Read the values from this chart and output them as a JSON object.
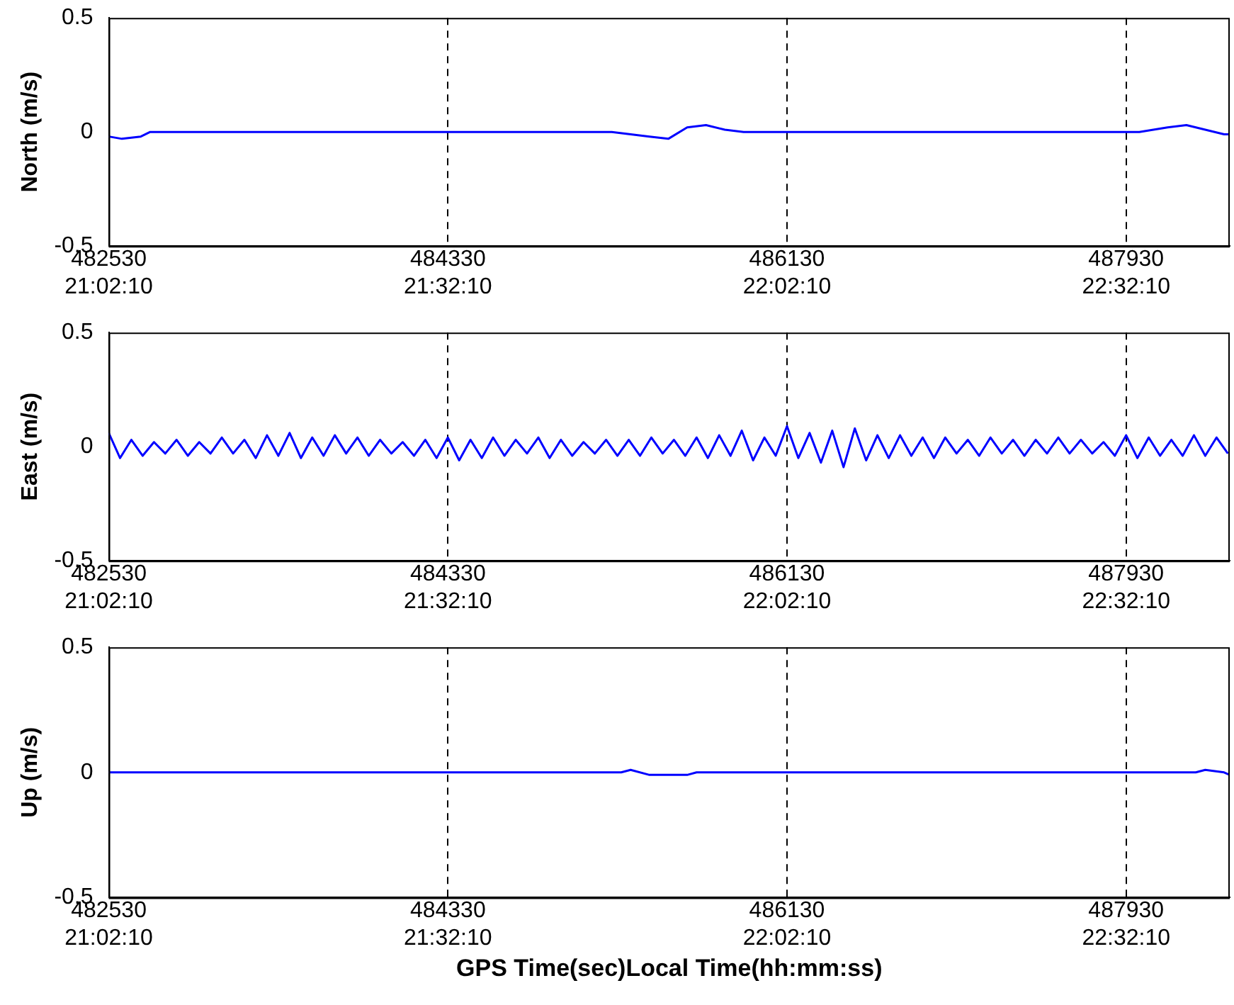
{
  "chart_data": [
    {
      "type": "line",
      "ylabel": "North (m/s)",
      "xlim": [
        482530,
        488480
      ],
      "ylim": [
        -0.5,
        0.5
      ],
      "yticks": [
        0.5,
        0,
        -0.5
      ],
      "xticks": [
        482530,
        484330,
        486130,
        487930
      ],
      "x2lim": [
        21.0361,
        22.6889
      ],
      "x2ticks": [
        {
          "value": 21.0361,
          "label": "21:02:10"
        },
        {
          "value": 21.5361,
          "label": "21:32:10"
        },
        {
          "value": 22.0361,
          "label": "22:02:10"
        },
        {
          "value": 22.5361,
          "label": "22:32:10"
        }
      ],
      "grid": "x",
      "legend": false,
      "marker": "none",
      "line_style": "solid",
      "x": [
        482530,
        482600,
        482700,
        482750,
        485200,
        485400,
        485500,
        485600,
        485700,
        485800,
        485900,
        488000,
        488150,
        488250,
        488350,
        488450,
        488480
      ],
      "series": [
        {
          "color": "#0000ff",
          "values": [
            -0.02,
            -0.03,
            -0.02,
            0,
            0,
            -0.02,
            -0.03,
            0.02,
            0.03,
            0.01,
            0,
            0,
            0.02,
            0.03,
            0.01,
            -0.01,
            -0.01
          ]
        }
      ]
    },
    {
      "type": "line",
      "ylabel": "East (m/s)",
      "xlim": [
        482530,
        488480
      ],
      "ylim": [
        -0.5,
        0.5
      ],
      "yticks": [
        0.5,
        0,
        -0.5
      ],
      "xticks": [
        482530,
        484330,
        486130,
        487930
      ],
      "x2lim": [
        21.0361,
        22.6889
      ],
      "x2ticks": [
        {
          "value": 21.0361,
          "label": "21:02:10"
        },
        {
          "value": 21.5361,
          "label": "21:32:10"
        },
        {
          "value": 22.0361,
          "label": "22:02:10"
        },
        {
          "value": 22.5361,
          "label": "22:32:10"
        }
      ],
      "grid": "x",
      "legend": false,
      "marker": "none",
      "line_style": "solid",
      "x": [
        482530,
        482590,
        482650,
        482710,
        482770,
        482830,
        482890,
        482950,
        483010,
        483070,
        483130,
        483190,
        483250,
        483310,
        483370,
        483430,
        483490,
        483550,
        483610,
        483670,
        483730,
        483790,
        483850,
        483910,
        483970,
        484030,
        484090,
        484150,
        484210,
        484270,
        484330,
        484390,
        484450,
        484510,
        484570,
        484630,
        484690,
        484750,
        484810,
        484870,
        484930,
        484990,
        485050,
        485110,
        485170,
        485230,
        485290,
        485350,
        485410,
        485470,
        485530,
        485590,
        485650,
        485710,
        485770,
        485830,
        485890,
        485950,
        486010,
        486070,
        486130,
        486190,
        486250,
        486310,
        486370,
        486430,
        486490,
        486550,
        486610,
        486670,
        486730,
        486790,
        486850,
        486910,
        486970,
        487030,
        487090,
        487150,
        487210,
        487270,
        487330,
        487390,
        487450,
        487510,
        487570,
        487630,
        487690,
        487750,
        487810,
        487870,
        487930,
        487990,
        488050,
        488110,
        488170,
        488230,
        488290,
        488350,
        488410,
        488470
      ],
      "series": [
        {
          "color": "#0000ff",
          "values": [
            0.06,
            -0.05,
            0.03,
            -0.04,
            0.02,
            -0.03,
            0.03,
            -0.04,
            0.02,
            -0.03,
            0.04,
            -0.03,
            0.03,
            -0.05,
            0.05,
            -0.04,
            0.06,
            -0.05,
            0.04,
            -0.04,
            0.05,
            -0.03,
            0.04,
            -0.04,
            0.03,
            -0.03,
            0.02,
            -0.04,
            0.03,
            -0.05,
            0.04,
            -0.06,
            0.03,
            -0.05,
            0.04,
            -0.04,
            0.03,
            -0.03,
            0.04,
            -0.05,
            0.03,
            -0.04,
            0.02,
            -0.03,
            0.03,
            -0.04,
            0.03,
            -0.04,
            0.04,
            -0.03,
            0.03,
            -0.04,
            0.04,
            -0.05,
            0.05,
            -0.04,
            0.07,
            -0.06,
            0.04,
            -0.04,
            0.09,
            -0.05,
            0.06,
            -0.07,
            0.07,
            -0.09,
            0.08,
            -0.06,
            0.05,
            -0.05,
            0.05,
            -0.04,
            0.04,
            -0.05,
            0.04,
            -0.03,
            0.03,
            -0.04,
            0.04,
            -0.03,
            0.03,
            -0.04,
            0.03,
            -0.03,
            0.04,
            -0.03,
            0.03,
            -0.03,
            0.02,
            -0.04,
            0.05,
            -0.05,
            0.04,
            -0.04,
            0.03,
            -0.04,
            0.05,
            -0.04,
            0.04,
            -0.03
          ]
        }
      ]
    },
    {
      "type": "line",
      "ylabel": "Up (m/s)",
      "x2label": "GPS Time(sec)Local Time(hh:mm:ss)",
      "xlim": [
        482530,
        488480
      ],
      "ylim": [
        -0.5,
        0.5
      ],
      "yticks": [
        0.5,
        0,
        -0.5
      ],
      "xticks": [
        482530,
        484330,
        486130,
        487930
      ],
      "x2lim": [
        21.0361,
        22.6889
      ],
      "x2ticks": [
        {
          "value": 21.0361,
          "label": "21:02:10"
        },
        {
          "value": 21.5361,
          "label": "21:32:10"
        },
        {
          "value": 22.0361,
          "label": "22:02:10"
        },
        {
          "value": 22.5361,
          "label": "22:32:10"
        }
      ],
      "grid": "x",
      "legend": false,
      "marker": "none",
      "line_style": "solid",
      "x": [
        482530,
        485250,
        485300,
        485400,
        485600,
        485650,
        488300,
        488350,
        488450,
        488480
      ],
      "series": [
        {
          "color": "#0000ff",
          "values": [
            0,
            0,
            0.01,
            -0.01,
            -0.01,
            0,
            0,
            0.01,
            0,
            -0.01
          ]
        }
      ]
    }
  ]
}
